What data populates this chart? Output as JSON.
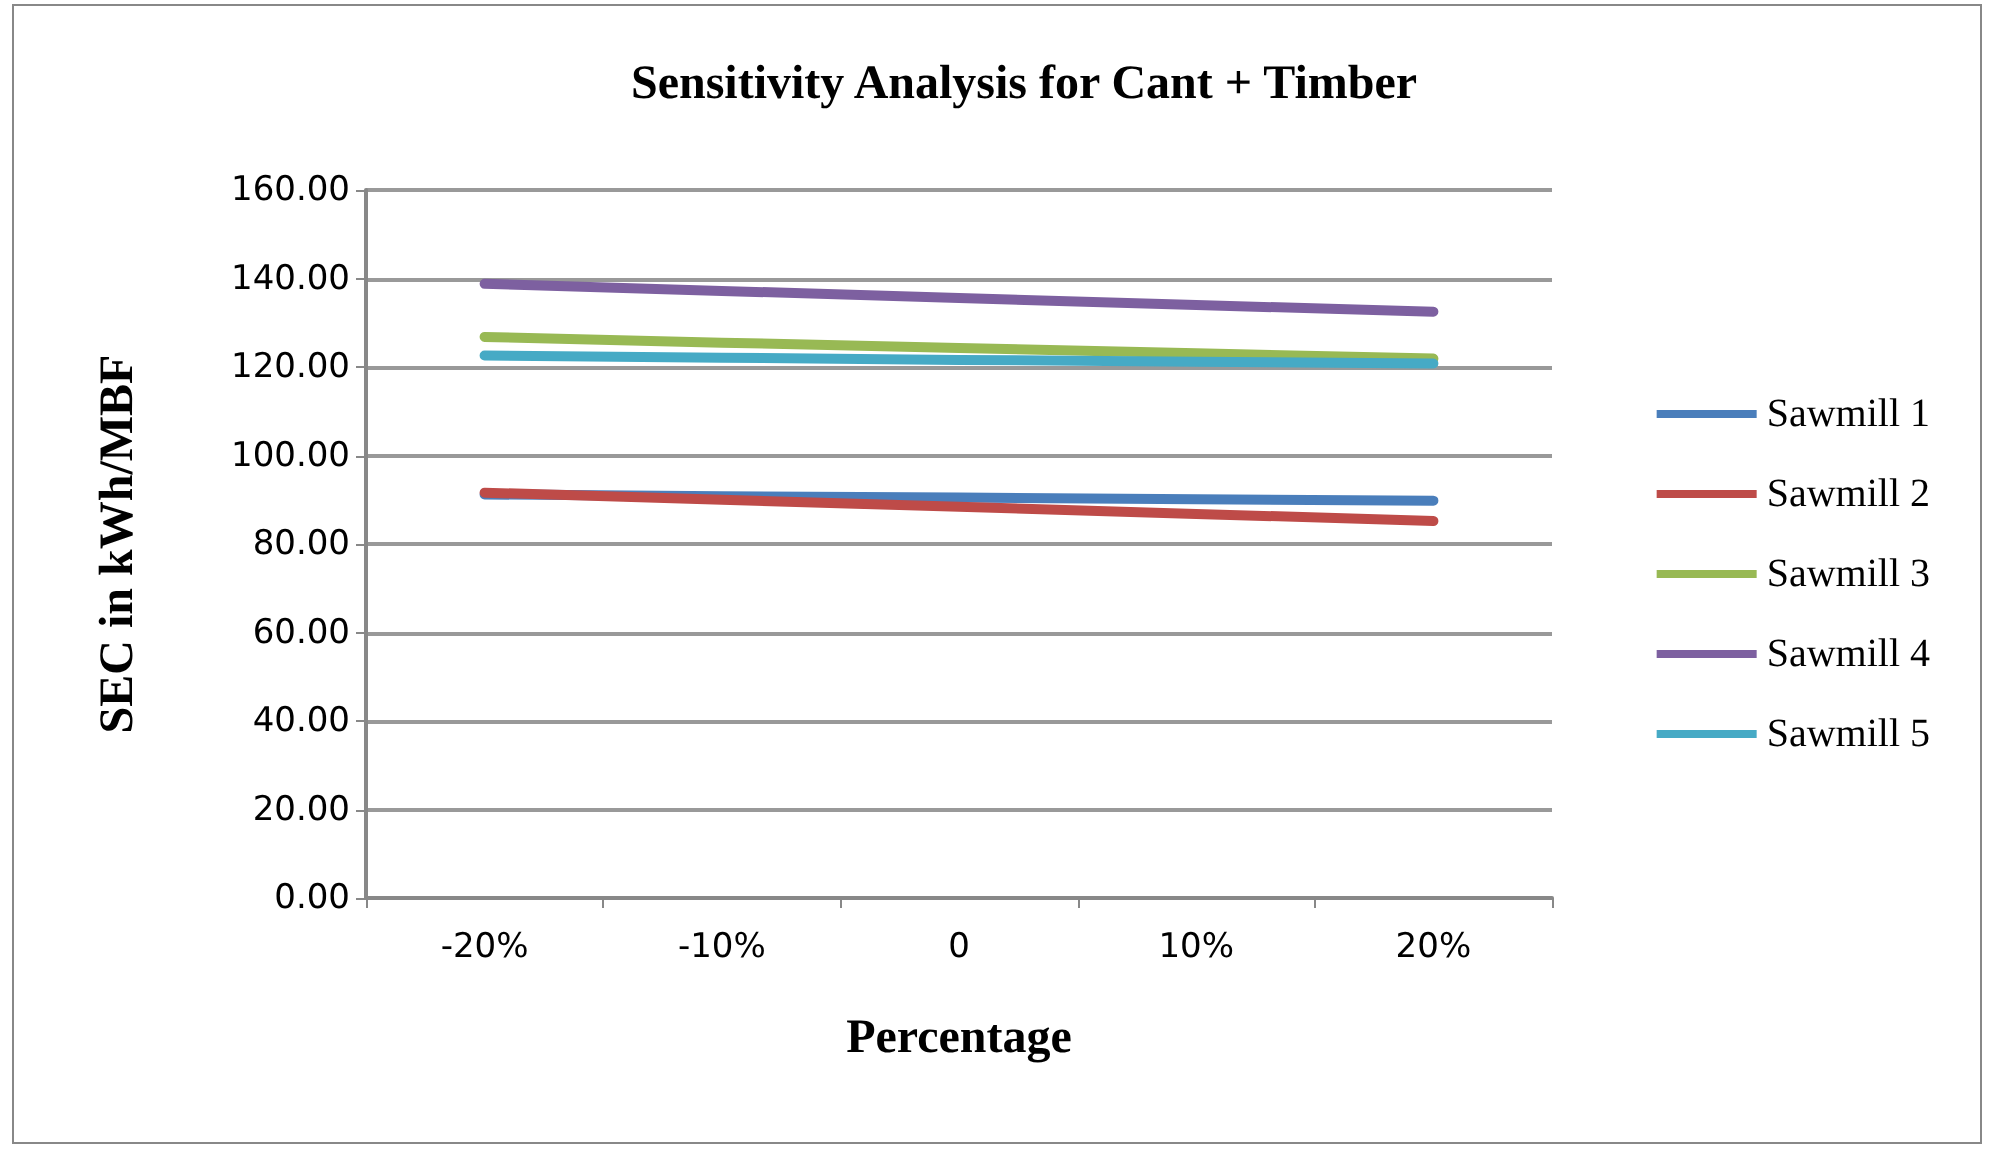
{
  "chart_data": {
    "type": "line",
    "title": "Sensitivity Analysis for Cant + Timber",
    "xlabel": "Percentage",
    "ylabel": "SEC in kWh/MBF",
    "categories": [
      "-20%",
      "-10%",
      "0",
      "10%",
      "20%"
    ],
    "series": [
      {
        "name": "Sawmill 1",
        "color": "#4a7ebb",
        "values": [
          91.2,
          90.8,
          90.5,
          90.1,
          89.8
        ]
      },
      {
        "name": "Sawmill 2",
        "color": "#be4b48",
        "values": [
          91.6,
          90.0,
          88.4,
          86.8,
          85.2
        ]
      },
      {
        "name": "Sawmill 3",
        "color": "#98b954",
        "values": [
          126.8,
          125.5,
          124.3,
          123.1,
          121.9
        ]
      },
      {
        "name": "Sawmill 4",
        "color": "#7d60a0",
        "values": [
          138.8,
          137.2,
          135.6,
          134.0,
          132.5
        ]
      },
      {
        "name": "Sawmill 5",
        "color": "#46aac5",
        "values": [
          122.6,
          122.1,
          121.6,
          121.2,
          120.8
        ]
      }
    ],
    "ylim": [
      0,
      160
    ],
    "yticks": [
      {
        "value": 0,
        "label": "0.00"
      },
      {
        "value": 20,
        "label": "20.00"
      },
      {
        "value": 40,
        "label": "40.00"
      },
      {
        "value": 60,
        "label": "60.00"
      },
      {
        "value": 80,
        "label": "80.00"
      },
      {
        "value": 100,
        "label": "100.00"
      },
      {
        "value": 120,
        "label": "120.00"
      },
      {
        "value": 140,
        "label": "140.00"
      },
      {
        "value": 160,
        "label": "160.00"
      }
    ],
    "grid": "y",
    "legend": "right",
    "marker": "none",
    "line_style": "solid"
  }
}
